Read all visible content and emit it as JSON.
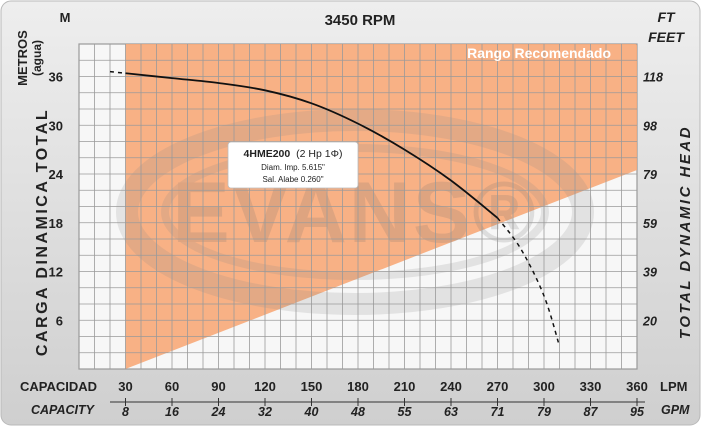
{
  "chart_data": {
    "type": "line",
    "title": "3450 RPM",
    "recommended_range_label": "Rango Recomendado",
    "model_label": {
      "model": "4HME200",
      "power": "(2 Hp 1Φ)",
      "impeller": "Diam. Imp. 5.615\"",
      "blade": "Sal. Alabe 0.260\""
    },
    "watermark": "EVANS®",
    "left_unit_top": "M",
    "left_unit_label": "METROS",
    "left_unit_sub": "(agua)",
    "left_axis_title": "CARGA DINAMICA TOTAL",
    "right_unit_top": "FT",
    "right_unit_label": "FEET",
    "right_axis_title": "TOTAL DYNAMIC HEAD",
    "xlabel_lpm": "CAPACIDAD",
    "xunit_lpm": "LPM",
    "xlabel_gpm": "CAPACITY",
    "xunit_gpm": "GPM",
    "x_ticks_lpm": [
      "30",
      "60",
      "90",
      "120",
      "150",
      "180",
      "210",
      "240",
      "270",
      "300",
      "330",
      "360"
    ],
    "x_ticks_gpm": [
      "8",
      "16",
      "24",
      "32",
      "40",
      "48",
      "55",
      "63",
      "71",
      "79",
      "87",
      "95"
    ],
    "y_ticks_m": [
      "6",
      "12",
      "18",
      "24",
      "30",
      "36"
    ],
    "y_ticks_ft": [
      "20",
      "39",
      "59",
      "79",
      "98",
      "118"
    ],
    "xlim_lpm": [
      0,
      360
    ],
    "ylim_m": [
      0,
      40
    ],
    "grid": true,
    "recommended_range_lpm": [
      30,
      360
    ],
    "curve": {
      "name": "4HME200",
      "points_lpm_m": [
        [
          20,
          36.6
        ],
        [
          30,
          36.4
        ],
        [
          60,
          35.8
        ],
        [
          90,
          35.2
        ],
        [
          120,
          34.3
        ],
        [
          150,
          32.7
        ],
        [
          180,
          30.2
        ],
        [
          210,
          27.0
        ],
        [
          240,
          23.2
        ],
        [
          270,
          18.6
        ],
        [
          285,
          14.8
        ],
        [
          300,
          9.0
        ],
        [
          310,
          2.8
        ]
      ],
      "solid_range_lpm": [
        30,
        270
      ]
    }
  }
}
